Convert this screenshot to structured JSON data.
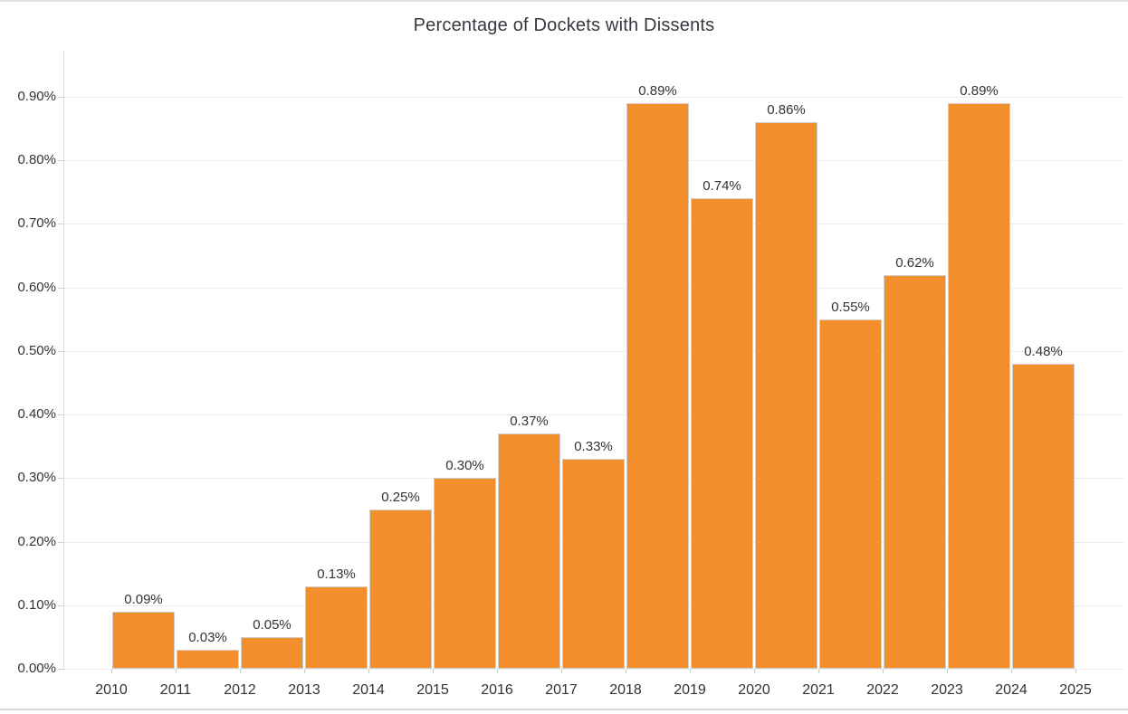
{
  "chart_data": {
    "type": "bar",
    "title": "Percentage of Dockets with Dissents",
    "categories": [
      "2010",
      "2011",
      "2012",
      "2013",
      "2014",
      "2015",
      "2016",
      "2017",
      "2018",
      "2019",
      "2020",
      "2021",
      "2022",
      "2023",
      "2024"
    ],
    "values": [
      0.09,
      0.03,
      0.05,
      0.13,
      0.25,
      0.3,
      0.37,
      0.33,
      0.89,
      0.74,
      0.86,
      0.55,
      0.62,
      0.89,
      0.48
    ],
    "bar_labels": [
      "0.09%",
      "0.03%",
      "0.05%",
      "0.13%",
      "0.25%",
      "0.30%",
      "0.37%",
      "0.33%",
      "0.89%",
      "0.74%",
      "0.86%",
      "0.55%",
      "0.62%",
      "0.89%",
      "0.48%"
    ],
    "x_tick_labels": [
      "2010",
      "2011",
      "2012",
      "2013",
      "2014",
      "2015",
      "2016",
      "2017",
      "2018",
      "2019",
      "2020",
      "2021",
      "2022",
      "2023",
      "2024",
      "2025"
    ],
    "y_tick_labels": [
      "0.00%",
      "0.10%",
      "0.20%",
      "0.30%",
      "0.40%",
      "0.50%",
      "0.60%",
      "0.70%",
      "0.80%",
      "0.90%"
    ],
    "y_axis": {
      "min": 0,
      "max": 0.9,
      "step": 0.1,
      "unit": "%"
    },
    "xlabel": "",
    "ylabel": "",
    "bars_span_between_ticks": true,
    "grid": "horizontal",
    "legend": "none",
    "colors": {
      "bar_fill": "#F28E2B",
      "bar_border": "#CFCFCF",
      "gridline": "#ECECEC",
      "axis_line": "#DBDBDB",
      "tick_mark": "#CCCCCC",
      "text": "#333333",
      "title_text": "#37373F",
      "background": "#FFFFFF"
    }
  }
}
